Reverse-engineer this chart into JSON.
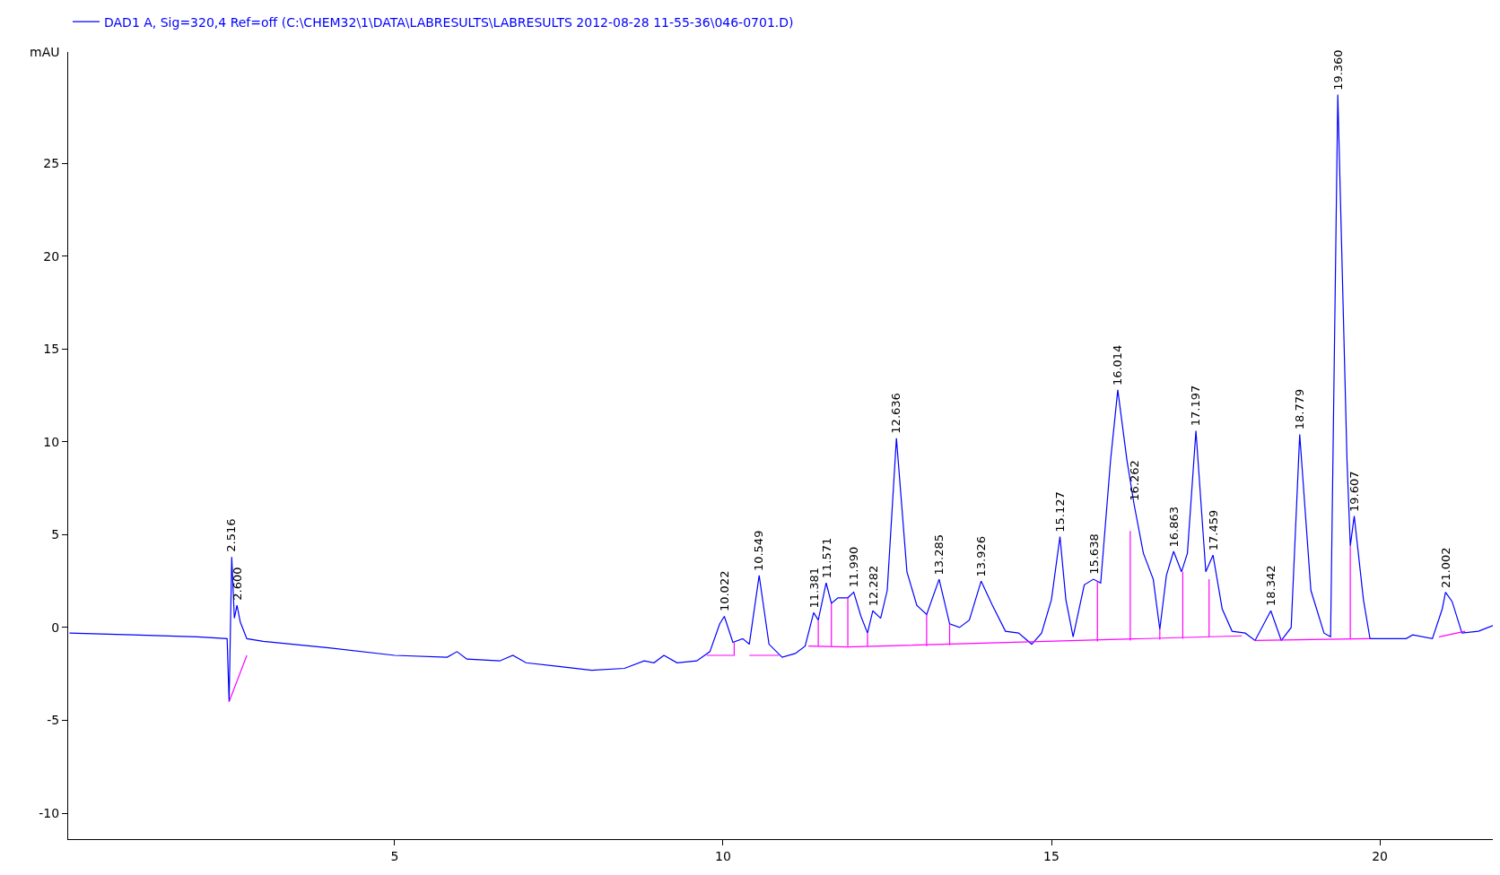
{
  "chart_data": {
    "type": "line",
    "ylabel": "mAU",
    "xlim": [
      0.03,
      21.72
    ],
    "ylim": [
      -11.4,
      31
    ],
    "xticks": [
      5,
      10,
      15,
      20
    ],
    "yticks": [
      -10,
      -5,
      0,
      5,
      10,
      15,
      20,
      25
    ],
    "legend": "top left",
    "marker": "none",
    "line_style": "solid",
    "series": [
      {
        "name": "DAD1 A, Sig=320,4 Ref=off (C:\\CHEM32\\1\\DATA\\LABRESULTS\\LABRESULTS 2012-08-28 11-55-36\\046-0701.D)",
        "color": "#0000ff",
        "x": [
          0.05,
          1,
          2,
          2.45,
          2.48,
          2.52,
          2.56,
          2.6,
          2.65,
          2.75,
          3,
          4,
          5,
          5.8,
          5.95,
          6.1,
          6.6,
          6.8,
          7,
          7.5,
          8,
          8.5,
          8.8,
          8.95,
          9.1,
          9.3,
          9.6,
          9.8,
          9.95,
          10.02,
          10.15,
          10.3,
          10.4,
          10.55,
          10.7,
          10.9,
          11.1,
          11.25,
          11.38,
          11.45,
          11.57,
          11.65,
          11.75,
          11.9,
          11.99,
          12.1,
          12.2,
          12.28,
          12.4,
          12.5,
          12.64,
          12.8,
          12.95,
          13.1,
          13.29,
          13.45,
          13.6,
          13.75,
          13.93,
          14.1,
          14.3,
          14.5,
          14.7,
          14.85,
          15.0,
          15.13,
          15.22,
          15.33,
          15.5,
          15.64,
          15.75,
          15.9,
          16.01,
          16.15,
          16.26,
          16.4,
          16.55,
          16.65,
          16.75,
          16.86,
          16.98,
          17.07,
          17.2,
          17.35,
          17.46,
          17.6,
          17.75,
          17.95,
          18.1,
          18.34,
          18.5,
          18.65,
          18.78,
          18.95,
          19.15,
          19.25,
          19.36,
          19.5,
          19.55,
          19.61,
          19.75,
          19.85,
          20.0,
          20.4,
          20.5,
          20.8,
          20.95,
          21.0,
          21.1,
          21.25,
          21.5,
          21.72
        ],
        "values": [
          -0.3,
          -0.4,
          -0.5,
          -0.6,
          -4.0,
          3.8,
          0.5,
          1.2,
          0.3,
          -0.6,
          -0.75,
          -1.1,
          -1.5,
          -1.6,
          -1.3,
          -1.7,
          -1.8,
          -1.5,
          -1.9,
          -2.1,
          -2.3,
          -2.2,
          -1.8,
          -1.9,
          -1.5,
          -1.9,
          -1.8,
          -1.3,
          0.2,
          0.6,
          -0.8,
          -0.6,
          -0.9,
          2.8,
          -0.9,
          -1.6,
          -1.4,
          -1.0,
          0.8,
          0.4,
          2.4,
          1.3,
          1.6,
          1.6,
          1.9,
          0.6,
          -0.3,
          0.9,
          0.5,
          2.0,
          10.2,
          3.0,
          1.2,
          0.7,
          2.6,
          0.2,
          0.0,
          0.4,
          2.5,
          1.2,
          -0.2,
          -0.3,
          -0.9,
          -0.3,
          1.5,
          4.9,
          1.5,
          -0.5,
          2.3,
          2.6,
          2.4,
          9.0,
          12.8,
          9.0,
          6.6,
          4.0,
          2.6,
          -0.1,
          2.8,
          4.1,
          3.0,
          4.0,
          10.6,
          3.0,
          3.9,
          1.0,
          -0.2,
          -0.3,
          -0.7,
          0.9,
          -0.7,
          0.0,
          10.4,
          2.0,
          -0.3,
          -0.5,
          28.7,
          9.0,
          4.4,
          6.0,
          1.5,
          -0.6,
          -0.6,
          -0.6,
          -0.4,
          -0.6,
          1.0,
          1.9,
          1.4,
          -0.3,
          -0.2,
          0.1
        ]
      },
      {
        "color": "#ff00ff",
        "x": [
          2.48,
          2.75,
          null,
          9.75,
          10.17,
          10.17,
          null,
          10.4,
          10.85,
          null,
          11.3,
          11.9,
          17.9,
          null,
          18.1,
          19.85,
          null,
          20.9,
          21.3,
          null,
          11.45,
          11.45,
          null,
          11.65,
          11.65,
          null,
          11.9,
          11.9,
          null,
          12.2,
          12.2,
          null,
          13.1,
          13.1,
          null,
          13.45,
          13.45,
          null,
          15.7,
          15.7,
          null,
          16.2,
          16.2,
          null,
          16.65,
          16.65,
          null,
          17.0,
          17.0,
          null,
          17.4,
          17.4,
          null,
          19.55,
          19.55
        ],
        "values": [
          -4.0,
          -1.5,
          null,
          -1.5,
          -1.5,
          -0.8,
          null,
          -1.5,
          -1.5,
          null,
          -1.0,
          -1.05,
          -0.45,
          null,
          -0.7,
          -0.6,
          null,
          -0.5,
          -0.2,
          null,
          -1.0,
          0.4,
          null,
          -1.0,
          1.3,
          null,
          -1.0,
          1.6,
          null,
          -1.0,
          -0.3,
          null,
          -1.0,
          0.7,
          null,
          -0.95,
          0.2,
          null,
          -0.75,
          2.5,
          null,
          -0.7,
          5.2,
          null,
          -0.65,
          -0.1,
          null,
          -0.6,
          3.0,
          null,
          -0.5,
          2.6,
          null,
          -0.6,
          4.4
        ]
      }
    ],
    "annotations": [
      {
        "text": "2.516",
        "x": 2.516,
        "y": 3.8
      },
      {
        "text": "2.600",
        "x": 2.6,
        "y": 1.2
      },
      {
        "text": "10.022",
        "x": 10.022,
        "y": 0.6
      },
      {
        "text": "10.549",
        "x": 10.549,
        "y": 2.8
      },
      {
        "text": "11.381",
        "x": 11.381,
        "y": 0.8
      },
      {
        "text": "11.571",
        "x": 11.571,
        "y": 2.4
      },
      {
        "text": "11.990",
        "x": 11.99,
        "y": 1.9
      },
      {
        "text": "12.282",
        "x": 12.282,
        "y": 0.9
      },
      {
        "text": "12.636",
        "x": 12.636,
        "y": 10.2
      },
      {
        "text": "13.285",
        "x": 13.285,
        "y": 2.6
      },
      {
        "text": "13.926",
        "x": 13.926,
        "y": 2.5
      },
      {
        "text": "15.127",
        "x": 15.127,
        "y": 4.9
      },
      {
        "text": "15.638",
        "x": 15.638,
        "y": 2.6
      },
      {
        "text": "16.014",
        "x": 16.014,
        "y": 12.8
      },
      {
        "text": "16.262",
        "x": 16.262,
        "y": 6.6
      },
      {
        "text": "16.863",
        "x": 16.863,
        "y": 4.1
      },
      {
        "text": "17.197",
        "x": 17.197,
        "y": 10.6
      },
      {
        "text": "17.459",
        "x": 17.459,
        "y": 3.9
      },
      {
        "text": "18.342",
        "x": 18.342,
        "y": 0.9
      },
      {
        "text": "18.779",
        "x": 18.779,
        "y": 10.4
      },
      {
        "text": "19.360",
        "x": 19.36,
        "y": 28.7
      },
      {
        "text": "19.607",
        "x": 19.607,
        "y": 6.0
      },
      {
        "text": "21.002",
        "x": 21.002,
        "y": 1.9
      }
    ]
  }
}
